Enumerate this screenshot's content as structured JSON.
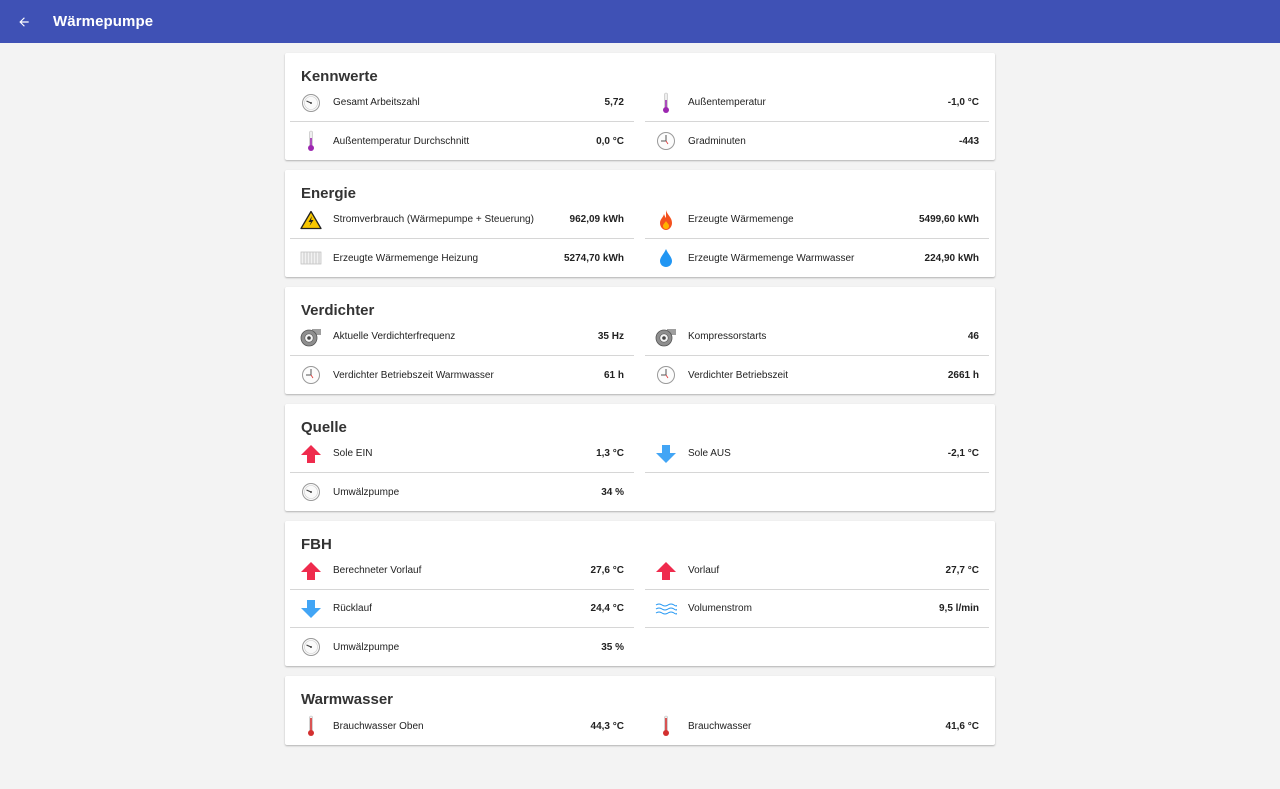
{
  "app": {
    "title": "Wärmepumpe"
  },
  "cards": [
    {
      "title": "Kennwerte",
      "rows": [
        {
          "icon": "gauge-icon",
          "label": "Gesamt Arbeitszahl",
          "value": "5,72"
        },
        {
          "icon": "thermometer-purple-icon",
          "label": "Außentemperatur",
          "value": "-1,0 °C"
        },
        {
          "icon": "thermometer-purple-icon",
          "label": "Außentemperatur Durchschnitt",
          "value": "0,0 °C"
        },
        {
          "icon": "clock-icon",
          "label": "Gradminuten",
          "value": "-443"
        }
      ]
    },
    {
      "title": "Energie",
      "rows": [
        {
          "icon": "warning-electricity-icon",
          "label": "Stromverbrauch (Wärmepumpe + Steuerung)",
          "value": "962,09 kWh"
        },
        {
          "icon": "flame-icon",
          "label": "Erzeugte Wärmemenge",
          "value": "5499,60 kWh"
        },
        {
          "icon": "radiator-icon",
          "label": "Erzeugte Wärmemenge Heizung",
          "value": "5274,70 kWh"
        },
        {
          "icon": "water-drop-icon",
          "label": "Erzeugte Wärmemenge Warmwasser",
          "value": "224,90 kWh"
        }
      ]
    },
    {
      "title": "Verdichter",
      "rows": [
        {
          "icon": "compressor-icon",
          "label": "Aktuelle Verdichterfrequenz",
          "value": "35 Hz"
        },
        {
          "icon": "compressor-icon",
          "label": "Kompressorstarts",
          "value": "46"
        },
        {
          "icon": "clock-icon",
          "label": "Verdichter Betriebszeit Warmwasser",
          "value": "61 h"
        },
        {
          "icon": "clock-icon",
          "label": "Verdichter Betriebszeit",
          "value": "2661 h"
        }
      ]
    },
    {
      "title": "Quelle",
      "rows": [
        {
          "icon": "arrow-up-red-icon",
          "label": "Sole EIN",
          "value": "1,3 °C"
        },
        {
          "icon": "arrow-down-blue-icon",
          "label": "Sole AUS",
          "value": "-2,1 °C"
        },
        {
          "icon": "gauge-icon",
          "label": "Umwälzpumpe",
          "value": "34 %"
        }
      ]
    },
    {
      "title": "FBH",
      "rows": [
        {
          "icon": "arrow-up-red-icon",
          "label": "Berechneter Vorlauf",
          "value": "27,6 °C"
        },
        {
          "icon": "arrow-up-red-icon",
          "label": "Vorlauf",
          "value": "27,7 °C"
        },
        {
          "icon": "arrow-down-blue-icon",
          "label": "Rücklauf",
          "value": "24,4 °C"
        },
        {
          "icon": "flow-waves-icon",
          "label": "Volumenstrom",
          "value": "9,5 l/min"
        },
        {
          "icon": "gauge-icon",
          "label": "Umwälzpumpe",
          "value": "35 %"
        }
      ]
    },
    {
      "title": "Warmwasser",
      "rows": [
        {
          "icon": "thermometer-red-icon",
          "label": "Brauchwasser Oben",
          "value": "44,3 °C"
        },
        {
          "icon": "thermometer-red-icon",
          "label": "Brauchwasser",
          "value": "41,6 °C"
        }
      ]
    }
  ]
}
